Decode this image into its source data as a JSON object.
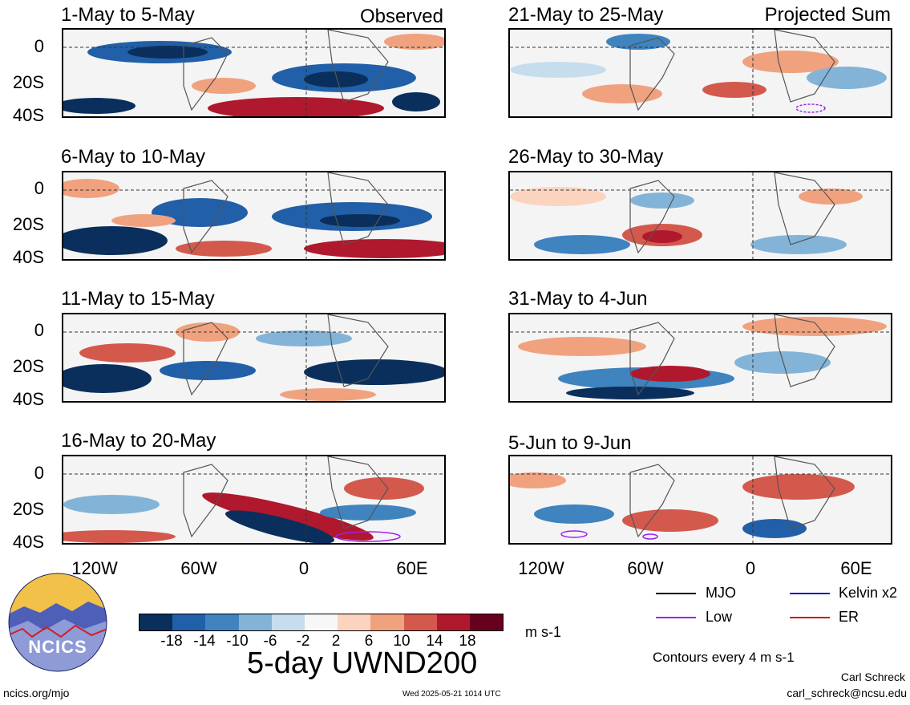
{
  "panels_left": [
    {
      "date": "1-May to 5-May",
      "tag": "Observed"
    },
    {
      "date": "6-May to 10-May",
      "tag": ""
    },
    {
      "date": "11-May to 15-May",
      "tag": ""
    },
    {
      "date": "16-May to 20-May",
      "tag": ""
    }
  ],
  "panels_right": [
    {
      "date": "21-May to 25-May",
      "tag": "Projected Sum"
    },
    {
      "date": "26-May to 30-May",
      "tag": ""
    },
    {
      "date": "31-May to 4-Jun",
      "tag": ""
    },
    {
      "date": "5-Jun to 9-Jun",
      "tag": ""
    }
  ],
  "y_ticks": [
    "0",
    "20S",
    "40S"
  ],
  "x_ticks": [
    "120W",
    "60W",
    "0",
    "60E"
  ],
  "colorbar": {
    "labels": [
      "-18",
      "-14",
      "-10",
      "-6",
      "-2",
      "2",
      "6",
      "10",
      "14",
      "18"
    ],
    "colors": [
      "#0a2f5c",
      "#2160a8",
      "#3f83bf",
      "#83b4d8",
      "#c6ddee",
      "#f7f7f7",
      "#fbd4c0",
      "#f0a27f",
      "#d4594d",
      "#b0182d",
      "#67001f"
    ],
    "units": "m s-1"
  },
  "legend": {
    "items": [
      {
        "label": "MJO",
        "color": "#000000"
      },
      {
        "label": "Kelvin x2",
        "color": "#1010c8"
      },
      {
        "label": "Low",
        "color": "#a020f0"
      },
      {
        "label": "ER",
        "color": "#d01010"
      }
    ],
    "contour_note": "Contours every 4 m s-1"
  },
  "main_title": "5-day UWND200",
  "logo_text": "NCICS",
  "footer": {
    "left": "ncics.org/mjo",
    "center": "Wed 2025-05-21 1014 UTC",
    "author": "Carl Schreck",
    "email": "carl_schreck@ncsu.edu"
  }
}
